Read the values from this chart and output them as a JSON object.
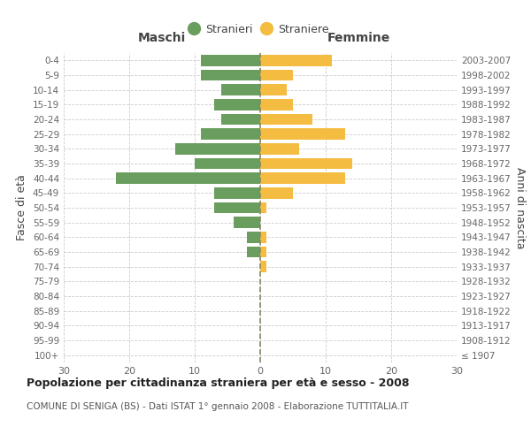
{
  "age_groups": [
    "100+",
    "95-99",
    "90-94",
    "85-89",
    "80-84",
    "75-79",
    "70-74",
    "65-69",
    "60-64",
    "55-59",
    "50-54",
    "45-49",
    "40-44",
    "35-39",
    "30-34",
    "25-29",
    "20-24",
    "15-19",
    "10-14",
    "5-9",
    "0-4"
  ],
  "birth_years": [
    "≤ 1907",
    "1908-1912",
    "1913-1917",
    "1918-1922",
    "1923-1927",
    "1928-1932",
    "1933-1937",
    "1938-1942",
    "1943-1947",
    "1948-1952",
    "1953-1957",
    "1958-1962",
    "1963-1967",
    "1968-1972",
    "1973-1977",
    "1978-1982",
    "1983-1987",
    "1988-1992",
    "1993-1997",
    "1998-2002",
    "2003-2007"
  ],
  "males": [
    0,
    0,
    0,
    0,
    0,
    0,
    0,
    2,
    2,
    4,
    7,
    7,
    22,
    10,
    13,
    9,
    6,
    7,
    6,
    9,
    9
  ],
  "females": [
    0,
    0,
    0,
    0,
    0,
    0,
    1,
    1,
    1,
    0,
    1,
    5,
    13,
    14,
    6,
    13,
    8,
    5,
    4,
    5,
    11
  ],
  "male_color": "#6a9e5e",
  "female_color": "#f5bc42",
  "background_color": "#ffffff",
  "grid_color": "#cccccc",
  "title": "Popolazione per cittadinanza straniera per età e sesso - 2008",
  "subtitle": "COMUNE DI SENIGA (BS) - Dati ISTAT 1° gennaio 2008 - Elaborazione TUTTITALIA.IT",
  "xlabel_left": "Maschi",
  "xlabel_right": "Femmine",
  "ylabel_left": "Fasce di età",
  "ylabel_right": "Anni di nascita",
  "xlim": 30,
  "legend_males": "Stranieri",
  "legend_females": "Straniere",
  "center_line_color": "#888866",
  "tick_label_color": "#666666",
  "axis_text_color": "#444444",
  "title_fontsize": 9,
  "subtitle_fontsize": 7.5,
  "bar_height": 0.75
}
